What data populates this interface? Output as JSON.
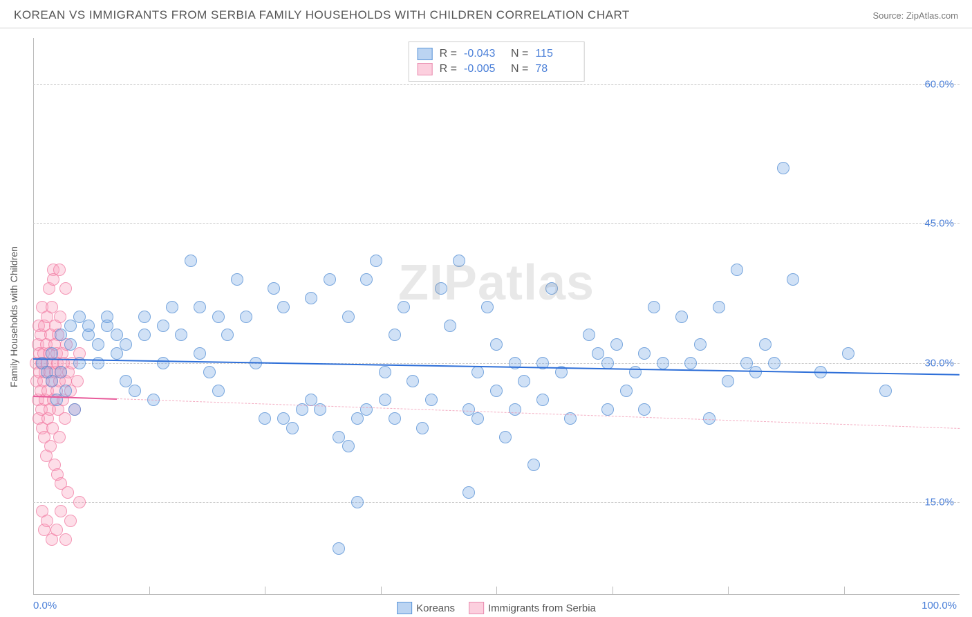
{
  "header": {
    "title": "KOREAN VS IMMIGRANTS FROM SERBIA FAMILY HOUSEHOLDS WITH CHILDREN CORRELATION CHART",
    "source": "Source: ZipAtlas.com"
  },
  "watermark": "ZIPatlas",
  "y_axis_label": "Family Households with Children",
  "chart": {
    "type": "scatter",
    "xlim": [
      0,
      100
    ],
    "ylim": [
      5,
      65
    ],
    "y_ticks": [
      15.0,
      30.0,
      45.0,
      60.0
    ],
    "x_ticks_minor": [
      12.5,
      25.0,
      37.5,
      50.0,
      62.5,
      75.0,
      87.5
    ],
    "x_tick_labels": [
      {
        "pos": 0,
        "label": "0.0%"
      },
      {
        "pos": 100,
        "label": "100.0%"
      }
    ],
    "background_color": "#ffffff",
    "grid_color": "#cccccc",
    "point_radius": 9,
    "series": {
      "blue": {
        "name": "Koreans",
        "color_fill": "rgba(120,170,230,0.35)",
        "color_stroke": "rgba(80,140,210,0.7)",
        "R": "-0.043",
        "N": "115",
        "trend": {
          "x1": 0,
          "y1": 30.5,
          "x2": 100,
          "y2": 28.8,
          "color": "#2e6fd8",
          "width": 2
        },
        "points": [
          [
            1,
            30
          ],
          [
            2,
            31
          ],
          [
            2,
            28
          ],
          [
            3,
            33
          ],
          [
            3,
            29
          ],
          [
            4,
            32
          ],
          [
            4,
            34
          ],
          [
            5,
            30
          ],
          [
            5,
            35
          ],
          [
            6,
            33
          ],
          [
            6,
            34
          ],
          [
            7,
            30
          ],
          [
            7,
            32
          ],
          [
            8,
            34
          ],
          [
            8,
            35
          ],
          [
            9,
            33
          ],
          [
            9,
            31
          ],
          [
            10,
            28
          ],
          [
            10,
            32
          ],
          [
            11,
            27
          ],
          [
            12,
            33
          ],
          [
            12,
            35
          ],
          [
            13,
            26
          ],
          [
            14,
            34
          ],
          [
            14,
            30
          ],
          [
            15,
            36
          ],
          [
            16,
            33
          ],
          [
            17,
            41
          ],
          [
            18,
            36
          ],
          [
            18,
            31
          ],
          [
            19,
            29
          ],
          [
            20,
            35
          ],
          [
            20,
            27
          ],
          [
            21,
            33
          ],
          [
            22,
            39
          ],
          [
            23,
            35
          ],
          [
            24,
            30
          ],
          [
            25,
            24
          ],
          [
            26,
            38
          ],
          [
            27,
            24
          ],
          [
            27,
            36
          ],
          [
            28,
            23
          ],
          [
            29,
            25
          ],
          [
            30,
            26
          ],
          [
            30,
            37
          ],
          [
            31,
            25
          ],
          [
            32,
            39
          ],
          [
            33,
            22
          ],
          [
            33,
            10
          ],
          [
            34,
            21
          ],
          [
            34,
            35
          ],
          [
            35,
            15
          ],
          [
            35,
            24
          ],
          [
            36,
            39
          ],
          [
            36,
            25
          ],
          [
            37,
            41
          ],
          [
            38,
            26
          ],
          [
            38,
            29
          ],
          [
            39,
            24
          ],
          [
            39,
            33
          ],
          [
            40,
            36
          ],
          [
            41,
            28
          ],
          [
            42,
            23
          ],
          [
            43,
            26
          ],
          [
            44,
            38
          ],
          [
            45,
            34
          ],
          [
            46,
            41
          ],
          [
            47,
            16
          ],
          [
            47,
            25
          ],
          [
            48,
            24
          ],
          [
            48,
            29
          ],
          [
            49,
            36
          ],
          [
            50,
            27
          ],
          [
            50,
            32
          ],
          [
            51,
            22
          ],
          [
            52,
            25
          ],
          [
            52,
            30
          ],
          [
            53,
            28
          ],
          [
            54,
            19
          ],
          [
            55,
            30
          ],
          [
            55,
            26
          ],
          [
            56,
            38
          ],
          [
            57,
            29
          ],
          [
            58,
            24
          ],
          [
            60,
            33
          ],
          [
            61,
            31
          ],
          [
            62,
            30
          ],
          [
            62,
            25
          ],
          [
            63,
            32
          ],
          [
            64,
            27
          ],
          [
            65,
            29
          ],
          [
            66,
            31
          ],
          [
            66,
            25
          ],
          [
            67,
            36
          ],
          [
            68,
            30
          ],
          [
            70,
            35
          ],
          [
            71,
            30
          ],
          [
            72,
            32
          ],
          [
            73,
            24
          ],
          [
            74,
            36
          ],
          [
            75,
            28
          ],
          [
            76,
            40
          ],
          [
            77,
            30
          ],
          [
            78,
            29
          ],
          [
            79,
            32
          ],
          [
            80,
            30
          ],
          [
            81,
            51
          ],
          [
            82,
            39
          ],
          [
            85,
            29
          ],
          [
            88,
            31
          ],
          [
            92,
            27
          ],
          [
            1.5,
            29
          ],
          [
            2.5,
            26
          ],
          [
            3.5,
            27
          ],
          [
            4.5,
            25
          ]
        ]
      },
      "pink": {
        "name": "Immigrants from Serbia",
        "color_fill": "rgba(250,160,190,0.35)",
        "color_stroke": "rgba(240,120,160,0.7)",
        "R": "-0.005",
        "N": "78",
        "trend_solid": {
          "x1": 0,
          "y1": 26.5,
          "x2": 9,
          "y2": 26.2,
          "color": "#e85a9a",
          "width": 2
        },
        "trend_dash": {
          "x1": 9,
          "y1": 26.2,
          "x2": 100,
          "y2": 23.0,
          "color": "rgba(240,140,170,0.7)"
        },
        "points": [
          [
            0.3,
            30
          ],
          [
            0.4,
            28
          ],
          [
            0.5,
            32
          ],
          [
            0.5,
            26
          ],
          [
            0.6,
            34
          ],
          [
            0.6,
            24
          ],
          [
            0.7,
            29
          ],
          [
            0.7,
            31
          ],
          [
            0.8,
            27
          ],
          [
            0.8,
            33
          ],
          [
            0.9,
            25
          ],
          [
            0.9,
            30
          ],
          [
            1.0,
            36
          ],
          [
            1.0,
            23
          ],
          [
            1.1,
            28
          ],
          [
            1.1,
            31
          ],
          [
            1.2,
            34
          ],
          [
            1.2,
            22
          ],
          [
            1.3,
            29
          ],
          [
            1.3,
            26
          ],
          [
            1.4,
            32
          ],
          [
            1.4,
            20
          ],
          [
            1.5,
            30
          ],
          [
            1.5,
            35
          ],
          [
            1.6,
            27
          ],
          [
            1.6,
            24
          ],
          [
            1.7,
            31
          ],
          [
            1.7,
            38
          ],
          [
            1.8,
            25
          ],
          [
            1.8,
            29
          ],
          [
            1.9,
            33
          ],
          [
            1.9,
            21
          ],
          [
            2.0,
            28
          ],
          [
            2.0,
            36
          ],
          [
            2.1,
            30
          ],
          [
            2.1,
            23
          ],
          [
            2.2,
            40
          ],
          [
            2.2,
            26
          ],
          [
            2.3,
            32
          ],
          [
            2.3,
            19
          ],
          [
            2.4,
            29
          ],
          [
            2.4,
            34
          ],
          [
            2.5,
            27
          ],
          [
            2.5,
            31
          ],
          [
            2.6,
            18
          ],
          [
            2.6,
            30
          ],
          [
            2.7,
            25
          ],
          [
            2.7,
            33
          ],
          [
            2.8,
            28
          ],
          [
            2.8,
            22
          ],
          [
            2.9,
            35
          ],
          [
            3.0,
            29
          ],
          [
            3.0,
            17
          ],
          [
            3.1,
            31
          ],
          [
            3.2,
            26
          ],
          [
            3.3,
            30
          ],
          [
            3.4,
            24
          ],
          [
            3.5,
            28
          ],
          [
            3.6,
            32
          ],
          [
            3.7,
            16
          ],
          [
            3.8,
            29
          ],
          [
            4.0,
            27
          ],
          [
            4.2,
            30
          ],
          [
            4.5,
            25
          ],
          [
            4.8,
            28
          ],
          [
            5.0,
            31
          ],
          [
            1.0,
            14
          ],
          [
            1.2,
            12
          ],
          [
            1.5,
            13
          ],
          [
            2.0,
            11
          ],
          [
            2.5,
            12
          ],
          [
            3.0,
            14
          ],
          [
            3.5,
            11
          ],
          [
            4.0,
            13
          ],
          [
            5.0,
            15
          ],
          [
            2.2,
            39
          ],
          [
            2.8,
            40
          ],
          [
            3.5,
            38
          ]
        ]
      }
    }
  },
  "legend_top": {
    "rows": [
      {
        "swatch": "blue",
        "R_label": "R =",
        "R_val": "-0.043",
        "N_label": "N =",
        "N_val": "115"
      },
      {
        "swatch": "pink",
        "R_label": "R =",
        "R_val": "-0.005",
        "N_label": "N =",
        "N_val": "78"
      }
    ]
  },
  "legend_bottom": {
    "items": [
      {
        "swatch": "blue",
        "label": "Koreans"
      },
      {
        "swatch": "pink",
        "label": "Immigrants from Serbia"
      }
    ]
  }
}
